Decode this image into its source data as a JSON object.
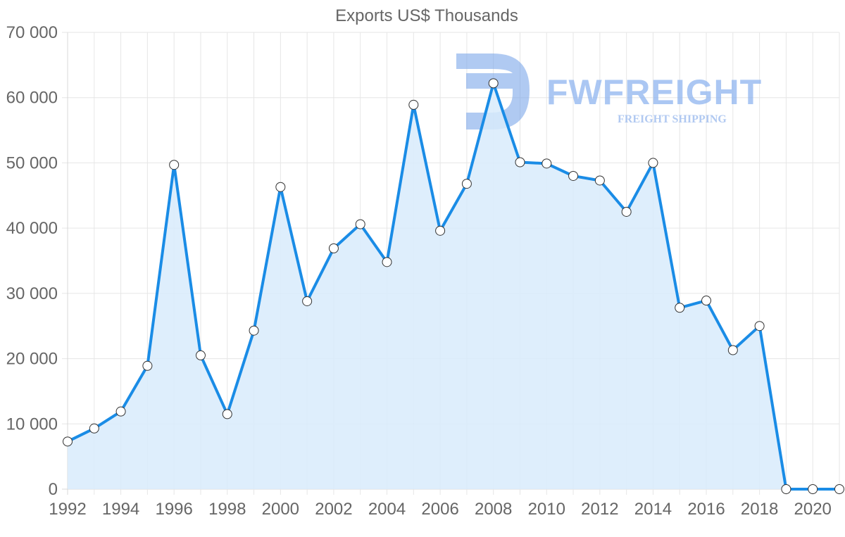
{
  "chart_data": {
    "type": "area",
    "title": "Exports US$ Thousands",
    "xlabel": "",
    "ylabel": "",
    "x": [
      1992,
      1993,
      1994,
      1995,
      1996,
      1997,
      1998,
      1999,
      2000,
      2001,
      2002,
      2003,
      2004,
      2005,
      2006,
      2007,
      2008,
      2009,
      2010,
      2011,
      2012,
      2013,
      2014,
      2015,
      2016,
      2017,
      2018,
      2019,
      2020,
      2021
    ],
    "values": [
      7300,
      9300,
      11900,
      18900,
      49700,
      20500,
      11500,
      24300,
      46300,
      28800,
      36900,
      40600,
      34800,
      58900,
      39600,
      46800,
      62200,
      50100,
      49900,
      48000,
      47300,
      42500,
      50000,
      27800,
      28900,
      21300,
      25000,
      0,
      0,
      0
    ],
    "xticks": [
      "1992",
      "1994",
      "1996",
      "1998",
      "2000",
      "2002",
      "2004",
      "2006",
      "2008",
      "2010",
      "2012",
      "2014",
      "2016",
      "2018",
      "2020"
    ],
    "yticks": [
      "0",
      "10 000",
      "20 000",
      "30 000",
      "40 000",
      "50 000",
      "60 000",
      "70 000"
    ],
    "ylim": [
      0,
      70000
    ],
    "xlim": [
      1992,
      2021
    ],
    "grid": true,
    "legend": "none"
  },
  "colors": {
    "line": "#1a8ce6",
    "fill": "#d8ebfb",
    "marker_fill": "#ffffff",
    "marker_stroke": "#333333"
  },
  "watermark": {
    "brand": "FWFREIGHT",
    "tagline": "FREIGHT SHIPPING"
  }
}
